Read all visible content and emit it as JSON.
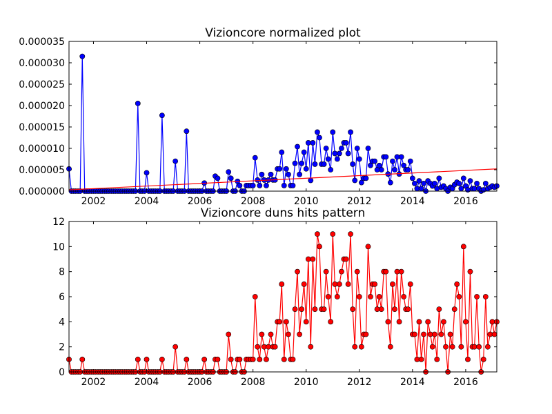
{
  "chart_data": [
    {
      "type": "line",
      "title": "Vizioncore normalized plot",
      "color": "#0000ff",
      "marker": "o",
      "x": [
        2001.08,
        2001.17,
        2001.25,
        2001.33,
        2001.42,
        2001.5,
        2001.58,
        2001.67,
        2001.75,
        2001.83,
        2001.92,
        2002,
        2002.08,
        2002.17,
        2002.25,
        2002.33,
        2002.42,
        2002.5,
        2002.58,
        2002.67,
        2002.75,
        2002.83,
        2002.92,
        2003,
        2003.08,
        2003.17,
        2003.25,
        2003.33,
        2003.42,
        2003.5,
        2003.58,
        2003.67,
        2003.75,
        2003.83,
        2003.92,
        2004,
        2004.08,
        2004.17,
        2004.25,
        2004.33,
        2004.42,
        2004.5,
        2004.58,
        2004.67,
        2004.75,
        2004.83,
        2004.92,
        2005,
        2005.08,
        2005.17,
        2005.25,
        2005.33,
        2005.42,
        2005.5,
        2005.58,
        2005.67,
        2005.75,
        2005.83,
        2005.92,
        2006,
        2006.08,
        2006.17,
        2006.25,
        2006.33,
        2006.42,
        2006.5,
        2006.58,
        2006.67,
        2006.75,
        2006.83,
        2006.92,
        2007,
        2007.08,
        2007.17,
        2007.25,
        2007.33,
        2007.42,
        2007.5,
        2007.58,
        2007.67,
        2007.75,
        2007.83,
        2007.92,
        2008,
        2008.08,
        2008.17,
        2008.25,
        2008.33,
        2008.42,
        2008.5,
        2008.58,
        2008.67,
        2008.75,
        2008.83,
        2008.92,
        2009,
        2009.08,
        2009.17,
        2009.25,
        2009.33,
        2009.42,
        2009.5,
        2009.58,
        2009.67,
        2009.75,
        2009.83,
        2009.92,
        2010,
        2010.08,
        2010.17,
        2010.25,
        2010.33,
        2010.42,
        2010.5,
        2010.58,
        2010.67,
        2010.75,
        2010.83,
        2010.92,
        2011,
        2011.08,
        2011.17,
        2011.25,
        2011.33,
        2011.42,
        2011.5,
        2011.58,
        2011.67,
        2011.75,
        2011.83,
        2011.92,
        2012,
        2012.08,
        2012.17,
        2012.25,
        2012.33,
        2012.42,
        2012.5,
        2012.58,
        2012.67,
        2012.75,
        2012.83,
        2012.92,
        2013,
        2013.08,
        2013.17,
        2013.25,
        2013.33,
        2013.42,
        2013.5,
        2013.58,
        2013.67,
        2013.75,
        2013.83,
        2013.92,
        2014,
        2014.08,
        2014.17,
        2014.25,
        2014.33,
        2014.42,
        2014.5,
        2014.58,
        2014.67,
        2014.75,
        2014.83,
        2014.92,
        2015,
        2015.08,
        2015.17,
        2015.25,
        2015.33,
        2015.42,
        2015.5,
        2015.58,
        2015.67,
        2015.75,
        2015.83,
        2015.92,
        2016,
        2016.08,
        2016.17,
        2016.25,
        2016.33,
        2016.42,
        2016.5,
        2016.58,
        2016.67,
        2016.75,
        2016.83,
        2016.92,
        2017,
        2017.08,
        2017.17
      ],
      "values": [
        5.2e-06,
        0,
        0,
        0,
        0,
        0,
        3.15e-05,
        0,
        0,
        0,
        0,
        0,
        0,
        0,
        0,
        0,
        0,
        0,
        0,
        0,
        0,
        0,
        0,
        0,
        0,
        0,
        0,
        0,
        0,
        0,
        0,
        2.05e-05,
        0,
        0,
        0,
        4.3e-06,
        0,
        0,
        0,
        0,
        0,
        0,
        1.77e-05,
        0,
        0,
        0,
        0,
        0,
        7e-06,
        0,
        0,
        0,
        0,
        1.4e-05,
        0,
        0,
        0,
        0,
        0,
        0,
        0,
        1.9e-06,
        0,
        0,
        0,
        0,
        3.5e-06,
        3e-06,
        0,
        0,
        0,
        0,
        4.5e-06,
        3e-06,
        0,
        0,
        2.3e-06,
        1.3e-06,
        0,
        0,
        1.3e-06,
        1.3e-06,
        1.3e-06,
        1.3e-06,
        7.8e-06,
        2.6e-06,
        1.3e-06,
        3.9e-06,
        2.6e-06,
        1.3e-06,
        2.6e-06,
        3.9e-06,
        2.6e-06,
        2.6e-06,
        5.2e-06,
        5.2e-06,
        9.1e-06,
        1.3e-06,
        5.2e-06,
        3.9e-06,
        1.3e-06,
        1.3e-06,
        6.5e-06,
        1.04e-05,
        3.9e-06,
        6.5e-06,
        9.1e-06,
        5.2e-06,
        1.13e-05,
        2.5e-06,
        1.13e-05,
        6.3e-06,
        1.38e-05,
        1.25e-05,
        6.3e-06,
        6.3e-06,
        1e-05,
        7.5e-06,
        5e-06,
        1.38e-05,
        8.8e-06,
        7.5e-06,
        8.8e-06,
        1e-05,
        1.13e-05,
        1.13e-05,
        8.8e-06,
        1.38e-05,
        6.3e-06,
        2.5e-06,
        1e-05,
        7.5e-06,
        2e-06,
        3e-06,
        3e-06,
        1e-05,
        6e-06,
        7e-06,
        7e-06,
        5e-06,
        6e-06,
        5e-06,
        8e-06,
        8e-06,
        4e-06,
        2e-06,
        7e-06,
        5e-06,
        8e-06,
        4e-06,
        8e-06,
        6e-06,
        5e-06,
        5e-06,
        7e-06,
        3e-06,
        1.8e-06,
        6e-07,
        2.4e-06,
        6e-07,
        1.8e-06,
        0,
        2.4e-06,
        1.8e-06,
        1.2e-06,
        1.8e-06,
        6e-07,
        3e-06,
        9e-07,
        1.2e-06,
        6e-07,
        0,
        9e-07,
        6e-07,
        1.5e-06,
        2.1e-06,
        1.8e-06,
        6e-07,
        3e-06,
        1.2e-06,
        3e-07,
        2.4e-06,
        6e-07,
        6e-07,
        1.8e-06,
        6e-07,
        0,
        3e-07,
        1.8e-06,
        6e-07,
        9e-07,
        1.2e-06,
        9e-07,
        1.2e-06
      ],
      "trend": {
        "x": [
          2001.08,
          2017.17
        ],
        "values": [
          3e-07,
          5.2e-06
        ],
        "color": "#ff0000"
      },
      "xlim": [
        2001.08,
        2017.17
      ],
      "xticks": [
        2002,
        2004,
        2006,
        2008,
        2010,
        2012,
        2014,
        2016
      ],
      "ylim": [
        0,
        3.5e-05
      ],
      "yticks": [
        {
          "value": 0,
          "label": "0.000000"
        },
        {
          "value": 5e-06,
          "label": "0.000005"
        },
        {
          "value": 1e-05,
          "label": "0.000010"
        },
        {
          "value": 1.5e-05,
          "label": "0.000015"
        },
        {
          "value": 2e-05,
          "label": "0.000020"
        },
        {
          "value": 2.5e-05,
          "label": "0.000025"
        },
        {
          "value": 3e-05,
          "label": "0.000030"
        },
        {
          "value": 3.5e-05,
          "label": "0.000035"
        }
      ]
    },
    {
      "type": "line",
      "title": "Vizioncore duns hits pattern",
      "color": "#ff0000",
      "marker": "o",
      "x": [
        2001.08,
        2001.17,
        2001.25,
        2001.33,
        2001.42,
        2001.5,
        2001.58,
        2001.67,
        2001.75,
        2001.83,
        2001.92,
        2002,
        2002.08,
        2002.17,
        2002.25,
        2002.33,
        2002.42,
        2002.5,
        2002.58,
        2002.67,
        2002.75,
        2002.83,
        2002.92,
        2003,
        2003.08,
        2003.17,
        2003.25,
        2003.33,
        2003.42,
        2003.5,
        2003.58,
        2003.67,
        2003.75,
        2003.83,
        2003.92,
        2004,
        2004.08,
        2004.17,
        2004.25,
        2004.33,
        2004.42,
        2004.5,
        2004.58,
        2004.67,
        2004.75,
        2004.83,
        2004.92,
        2005,
        2005.08,
        2005.17,
        2005.25,
        2005.33,
        2005.42,
        2005.5,
        2005.58,
        2005.67,
        2005.75,
        2005.83,
        2005.92,
        2006,
        2006.08,
        2006.17,
        2006.25,
        2006.33,
        2006.42,
        2006.5,
        2006.58,
        2006.67,
        2006.75,
        2006.83,
        2006.92,
        2007,
        2007.08,
        2007.17,
        2007.25,
        2007.33,
        2007.42,
        2007.5,
        2007.58,
        2007.67,
        2007.75,
        2007.83,
        2007.92,
        2008,
        2008.08,
        2008.17,
        2008.25,
        2008.33,
        2008.42,
        2008.5,
        2008.58,
        2008.67,
        2008.75,
        2008.83,
        2008.92,
        2009,
        2009.08,
        2009.17,
        2009.25,
        2009.33,
        2009.42,
        2009.5,
        2009.58,
        2009.67,
        2009.75,
        2009.83,
        2009.92,
        2010,
        2010.08,
        2010.17,
        2010.25,
        2010.33,
        2010.42,
        2010.5,
        2010.58,
        2010.67,
        2010.75,
        2010.83,
        2010.92,
        2011,
        2011.08,
        2011.17,
        2011.25,
        2011.33,
        2011.42,
        2011.5,
        2011.58,
        2011.67,
        2011.75,
        2011.83,
        2011.92,
        2012,
        2012.08,
        2012.17,
        2012.25,
        2012.33,
        2012.42,
        2012.5,
        2012.58,
        2012.67,
        2012.75,
        2012.83,
        2012.92,
        2013,
        2013.08,
        2013.17,
        2013.25,
        2013.33,
        2013.42,
        2013.5,
        2013.58,
        2013.67,
        2013.75,
        2013.83,
        2013.92,
        2014,
        2014.08,
        2014.17,
        2014.25,
        2014.33,
        2014.42,
        2014.5,
        2014.58,
        2014.67,
        2014.75,
        2014.83,
        2014.92,
        2015,
        2015.08,
        2015.17,
        2015.25,
        2015.33,
        2015.42,
        2015.5,
        2015.58,
        2015.67,
        2015.75,
        2015.83,
        2015.92,
        2016,
        2016.08,
        2016.17,
        2016.25,
        2016.33,
        2016.42,
        2016.5,
        2016.58,
        2016.67,
        2016.75,
        2016.83,
        2016.92,
        2017,
        2017.08,
        2017.17
      ],
      "values": [
        1,
        0,
        0,
        0,
        0,
        0,
        1,
        0,
        0,
        0,
        0,
        0,
        0,
        0,
        0,
        0,
        0,
        0,
        0,
        0,
        0,
        0,
        0,
        0,
        0,
        0,
        0,
        0,
        0,
        0,
        0,
        1,
        0,
        0,
        0,
        1,
        0,
        0,
        0,
        0,
        0,
        0,
        1,
        0,
        0,
        0,
        0,
        0,
        2,
        0,
        0,
        0,
        0,
        1,
        0,
        0,
        0,
        0,
        0,
        0,
        0,
        1,
        0,
        0,
        0,
        0,
        1,
        1,
        0,
        0,
        0,
        0,
        3,
        1,
        0,
        0,
        1,
        1,
        0,
        0,
        1,
        1,
        1,
        1,
        6,
        2,
        1,
        3,
        2,
        1,
        2,
        3,
        2,
        2,
        4,
        4,
        7,
        1,
        4,
        3,
        1,
        1,
        5,
        8,
        3,
        5,
        7,
        4,
        9,
        2,
        9,
        5,
        11,
        10,
        5,
        5,
        8,
        6,
        4,
        11,
        7,
        6,
        7,
        8,
        9,
        9,
        7,
        11,
        5,
        2,
        8,
        6,
        2,
        3,
        3,
        10,
        6,
        7,
        7,
        5,
        6,
        5,
        8,
        8,
        4,
        2,
        7,
        5,
        8,
        4,
        8,
        6,
        5,
        5,
        7,
        3,
        3,
        1,
        4,
        1,
        3,
        0,
        4,
        3,
        2,
        3,
        1,
        5,
        3,
        4,
        2,
        0,
        3,
        2,
        5,
        7,
        6,
        2,
        10,
        4,
        1,
        8,
        2,
        2,
        6,
        2,
        0,
        1,
        6,
        2,
        3,
        4,
        3,
        4
      ],
      "xlim": [
        2001.08,
        2017.17
      ],
      "xticks": [
        2002,
        2004,
        2006,
        2008,
        2010,
        2012,
        2014,
        2016
      ],
      "ylim": [
        0,
        12
      ],
      "yticks": [
        0,
        2,
        4,
        6,
        8,
        10,
        12
      ]
    }
  ]
}
